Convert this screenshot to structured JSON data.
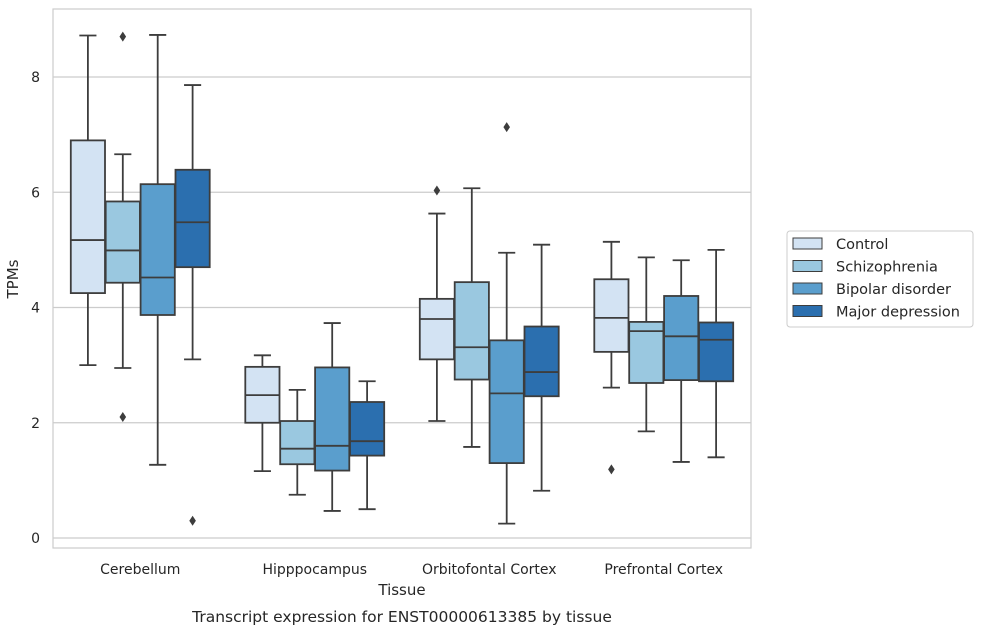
{
  "chart_data": {
    "type": "box",
    "title": "",
    "caption": "Transcript expression for ENST00000613385 by tissue",
    "xlabel": "Tissue",
    "ylabel": "TPMs",
    "ylim": [
      -0.15,
      9.3
    ],
    "yticks": [
      0,
      2,
      4,
      6,
      8
    ],
    "grid": "horizontal",
    "legend_position": "right-outside",
    "categories": [
      "Cerebellum",
      "Hipppocampus",
      "Orbitofontal Cortex",
      "Prefrontal Cortex"
    ],
    "series": [
      {
        "name": "Control",
        "color": "#d3e3f3",
        "boxes": [
          {
            "whisker_low": 3.0,
            "q1": 4.25,
            "median": 5.17,
            "q3": 6.9,
            "whisker_high": 8.72,
            "outliers": []
          },
          {
            "whisker_low": 1.16,
            "q1": 2.0,
            "median": 2.48,
            "q3": 2.97,
            "whisker_high": 3.17,
            "outliers": []
          },
          {
            "whisker_low": 2.03,
            "q1": 3.1,
            "median": 3.8,
            "q3": 4.15,
            "whisker_high": 5.63,
            "outliers": [
              6.03
            ]
          },
          {
            "whisker_low": 2.61,
            "q1": 3.23,
            "median": 3.82,
            "q3": 4.49,
            "whisker_high": 5.14,
            "outliers": [
              1.19
            ]
          }
        ]
      },
      {
        "name": "Schizophrenia",
        "color": "#9ac8e0",
        "boxes": [
          {
            "whisker_low": 2.95,
            "q1": 4.43,
            "median": 4.99,
            "q3": 5.84,
            "whisker_high": 6.66,
            "outliers": [
              8.7,
              2.1
            ]
          },
          {
            "whisker_low": 0.75,
            "q1": 1.28,
            "median": 1.55,
            "q3": 2.03,
            "whisker_high": 2.57,
            "outliers": []
          },
          {
            "whisker_low": 1.58,
            "q1": 2.75,
            "median": 3.31,
            "q3": 4.44,
            "whisker_high": 6.07,
            "outliers": []
          },
          {
            "whisker_low": 1.85,
            "q1": 2.69,
            "median": 3.59,
            "q3": 3.75,
            "whisker_high": 4.87,
            "outliers": []
          }
        ]
      },
      {
        "name": "Bipolar disorder",
        "color": "#5a9ecd",
        "boxes": [
          {
            "whisker_low": 1.27,
            "q1": 3.87,
            "median": 4.52,
            "q3": 6.14,
            "whisker_high": 8.73,
            "outliers": []
          },
          {
            "whisker_low": 0.47,
            "q1": 1.17,
            "median": 1.6,
            "q3": 2.96,
            "whisker_high": 3.73,
            "outliers": []
          },
          {
            "whisker_low": 0.25,
            "q1": 1.3,
            "median": 2.51,
            "q3": 3.43,
            "whisker_high": 4.95,
            "outliers": [
              7.13
            ]
          },
          {
            "whisker_low": 1.32,
            "q1": 2.74,
            "median": 3.5,
            "q3": 4.2,
            "whisker_high": 4.82,
            "outliers": []
          }
        ]
      },
      {
        "name": "Major depression",
        "color": "#2b6faf",
        "boxes": [
          {
            "whisker_low": 3.1,
            "q1": 4.7,
            "median": 5.48,
            "q3": 6.39,
            "whisker_high": 7.86,
            "outliers": [
              0.3
            ]
          },
          {
            "whisker_low": 0.5,
            "q1": 1.43,
            "median": 1.68,
            "q3": 2.36,
            "whisker_high": 2.72,
            "outliers": []
          },
          {
            "whisker_low": 0.82,
            "q1": 2.46,
            "median": 2.88,
            "q3": 3.67,
            "whisker_high": 5.09,
            "outliers": []
          },
          {
            "whisker_low": 1.4,
            "q1": 2.72,
            "median": 3.44,
            "q3": 3.74,
            "whisker_high": 5.0,
            "outliers": []
          }
        ]
      }
    ]
  },
  "style": {
    "edge_color": "#3d3d3d",
    "grid_color": "#cccccc",
    "frame_color": "#cccccc",
    "background": "#ffffff"
  }
}
